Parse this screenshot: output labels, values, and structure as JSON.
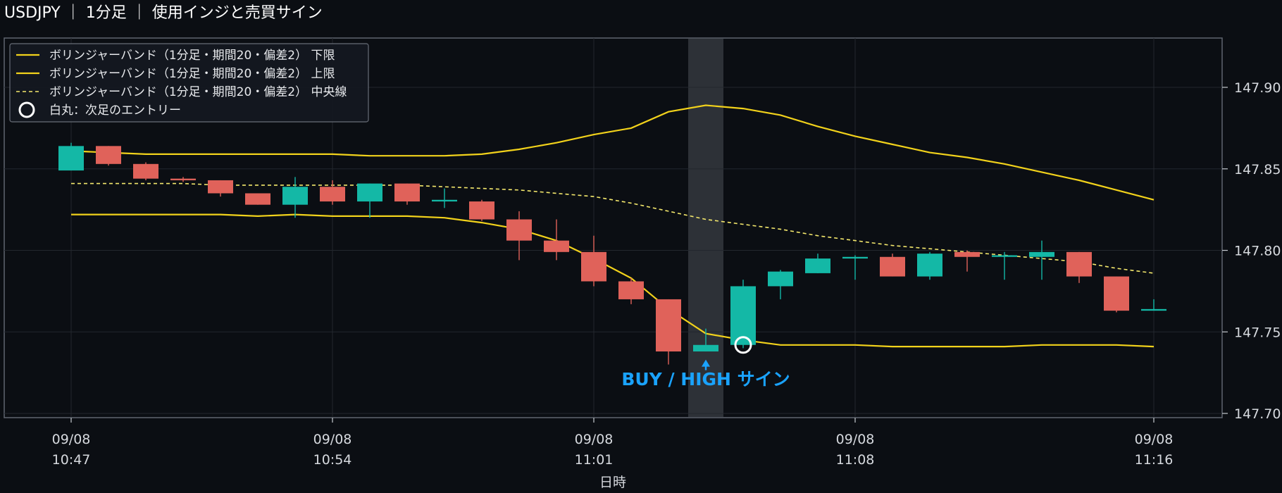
{
  "chart_data": {
    "type": "candlestick",
    "title": "USDJPY ｜ 1分足 ｜ 使用インジと売買サイン",
    "xlabel": "日時",
    "ylabel": "",
    "ylim": [
      147.695,
      147.93
    ],
    "yticks": [
      147.7,
      147.75,
      147.8,
      147.85,
      147.9
    ],
    "ytick_labels": [
      "147.70",
      "147.75",
      "147.80",
      "147.85",
      "147.90"
    ],
    "xticks": [
      {
        "index": 0,
        "date": "09/08",
        "time": "10:47"
      },
      {
        "index": 7,
        "date": "09/08",
        "time": "10:54"
      },
      {
        "index": 14,
        "date": "09/08",
        "time": "11:01"
      },
      {
        "index": 21,
        "date": "09/08",
        "time": "11:08"
      },
      {
        "index": 29,
        "date": "09/08",
        "time": "11:16"
      }
    ],
    "candles": [
      {
        "time": "10:47",
        "open": 147.849,
        "high": 147.866,
        "low": 147.849,
        "close": 147.864
      },
      {
        "time": "10:48",
        "open": 147.864,
        "high": 147.864,
        "low": 147.852,
        "close": 147.853
      },
      {
        "time": "10:49",
        "open": 147.853,
        "high": 147.854,
        "low": 147.843,
        "close": 147.844
      },
      {
        "time": "10:50",
        "open": 147.844,
        "high": 147.845,
        "low": 147.842,
        "close": 147.843
      },
      {
        "time": "10:51",
        "open": 147.843,
        "high": 147.843,
        "low": 147.833,
        "close": 147.835
      },
      {
        "time": "10:52",
        "open": 147.835,
        "high": 147.835,
        "low": 147.828,
        "close": 147.828
      },
      {
        "time": "10:53",
        "open": 147.828,
        "high": 147.845,
        "low": 147.82,
        "close": 147.839
      },
      {
        "time": "10:54",
        "open": 147.839,
        "high": 147.843,
        "low": 147.828,
        "close": 147.83
      },
      {
        "time": "10:55",
        "open": 147.83,
        "high": 147.841,
        "low": 147.82,
        "close": 147.841
      },
      {
        "time": "10:56",
        "open": 147.841,
        "high": 147.841,
        "low": 147.828,
        "close": 147.83
      },
      {
        "time": "10:57",
        "open": 147.83,
        "high": 147.838,
        "low": 147.826,
        "close": 147.831
      },
      {
        "time": "10:58",
        "open": 147.83,
        "high": 147.831,
        "low": 147.818,
        "close": 147.819
      },
      {
        "time": "10:59",
        "open": 147.819,
        "high": 147.824,
        "low": 147.794,
        "close": 147.806
      },
      {
        "time": "11:00",
        "open": 147.806,
        "high": 147.819,
        "low": 147.794,
        "close": 147.799
      },
      {
        "time": "11:01",
        "open": 147.799,
        "high": 147.809,
        "low": 147.778,
        "close": 147.781
      },
      {
        "time": "11:02",
        "open": 147.781,
        "high": 147.783,
        "low": 147.767,
        "close": 147.77
      },
      {
        "time": "11:03",
        "open": 147.77,
        "high": 147.77,
        "low": 147.73,
        "close": 147.738
      },
      {
        "time": "11:04",
        "open": 147.738,
        "high": 147.752,
        "low": 147.738,
        "close": 147.742
      },
      {
        "time": "11:05",
        "open": 147.742,
        "high": 147.782,
        "low": 147.74,
        "close": 147.778
      },
      {
        "time": "11:06",
        "open": 147.778,
        "high": 147.788,
        "low": 147.77,
        "close": 147.787
      },
      {
        "time": "11:07",
        "open": 147.786,
        "high": 147.798,
        "low": 147.786,
        "close": 147.795
      },
      {
        "time": "11:08",
        "open": 147.795,
        "high": 147.797,
        "low": 147.782,
        "close": 147.796
      },
      {
        "time": "11:09",
        "open": 147.796,
        "high": 147.798,
        "low": 147.784,
        "close": 147.784
      },
      {
        "time": "11:10",
        "open": 147.784,
        "high": 147.799,
        "low": 147.782,
        "close": 147.798
      },
      {
        "time": "11:11",
        "open": 147.799,
        "high": 147.8,
        "low": 147.787,
        "close": 147.796
      },
      {
        "time": "11:12",
        "open": 147.796,
        "high": 147.799,
        "low": 147.782,
        "close": 147.797
      },
      {
        "time": "11:13",
        "open": 147.796,
        "high": 147.806,
        "low": 147.782,
        "close": 147.799
      },
      {
        "time": "11:14",
        "open": 147.799,
        "high": 147.799,
        "low": 147.78,
        "close": 147.784
      },
      {
        "time": "11:15",
        "open": 147.784,
        "high": 147.784,
        "low": 147.762,
        "close": 147.763
      },
      {
        "time": "11:16",
        "open": 147.763,
        "high": 147.77,
        "low": 147.763,
        "close": 147.764
      }
    ],
    "series": [
      {
        "name": "ボリンジャーバンド（1分足・期間20・偏差2） 下限",
        "style": "solid",
        "color": "#f2d21b",
        "values": [
          147.822,
          147.822,
          147.822,
          147.822,
          147.822,
          147.821,
          147.822,
          147.821,
          147.821,
          147.821,
          147.82,
          147.817,
          147.813,
          147.806,
          147.795,
          147.783,
          147.764,
          147.749,
          147.745,
          147.742,
          147.742,
          147.742,
          147.741,
          147.741,
          147.741,
          147.741,
          147.742,
          147.742,
          147.742,
          147.741
        ]
      },
      {
        "name": "ボリンジャーバンド（1分足・期間20・偏差2） 上限",
        "style": "solid",
        "color": "#f2d21b",
        "values": [
          147.861,
          147.86,
          147.859,
          147.859,
          147.859,
          147.859,
          147.859,
          147.859,
          147.858,
          147.858,
          147.858,
          147.859,
          147.862,
          147.866,
          147.871,
          147.875,
          147.885,
          147.889,
          147.887,
          147.883,
          147.876,
          147.87,
          147.865,
          147.86,
          147.857,
          147.853,
          147.848,
          147.843,
          147.837,
          147.831
        ]
      },
      {
        "name": "ボリンジャーバンド（1分足・期間20・偏差2） 中央線",
        "style": "dashed",
        "color": "#f4e86c",
        "values": [
          147.841,
          147.841,
          147.841,
          147.841,
          147.84,
          147.84,
          147.84,
          147.84,
          147.84,
          147.84,
          147.839,
          147.838,
          147.837,
          147.835,
          147.833,
          147.829,
          147.824,
          147.819,
          147.816,
          147.813,
          147.809,
          147.806,
          147.803,
          147.801,
          147.799,
          147.797,
          147.795,
          147.793,
          147.789,
          147.786
        ]
      }
    ],
    "highlight_index": 17,
    "entry_marker": {
      "index": 18,
      "price": 147.742
    },
    "buy_arrow": {
      "index": 17,
      "price": 147.733
    },
    "annotation": "BUY / HIGH サイン",
    "legend": {
      "placement": "top-left",
      "entries": [
        {
          "label": "ボリンジャーバンド（1分足・期間20・偏差2） 下限",
          "style": "solid"
        },
        {
          "label": "ボリンジャーバンド（1分足・期間20・偏差2） 上限",
          "style": "solid"
        },
        {
          "label": "ボリンジャーバンド（1分足・期間20・偏差2） 中央線",
          "style": "dashed"
        },
        {
          "label": "白丸：次足のエントリー",
          "style": "circle"
        }
      ]
    },
    "colors": {
      "up": "#14b8a6",
      "down": "#e0625a",
      "band": "#f2d21b",
      "mid": "#f4e86c",
      "annotation": "#1aa3ff",
      "background": "#0b0e13"
    },
    "grid": true
  }
}
